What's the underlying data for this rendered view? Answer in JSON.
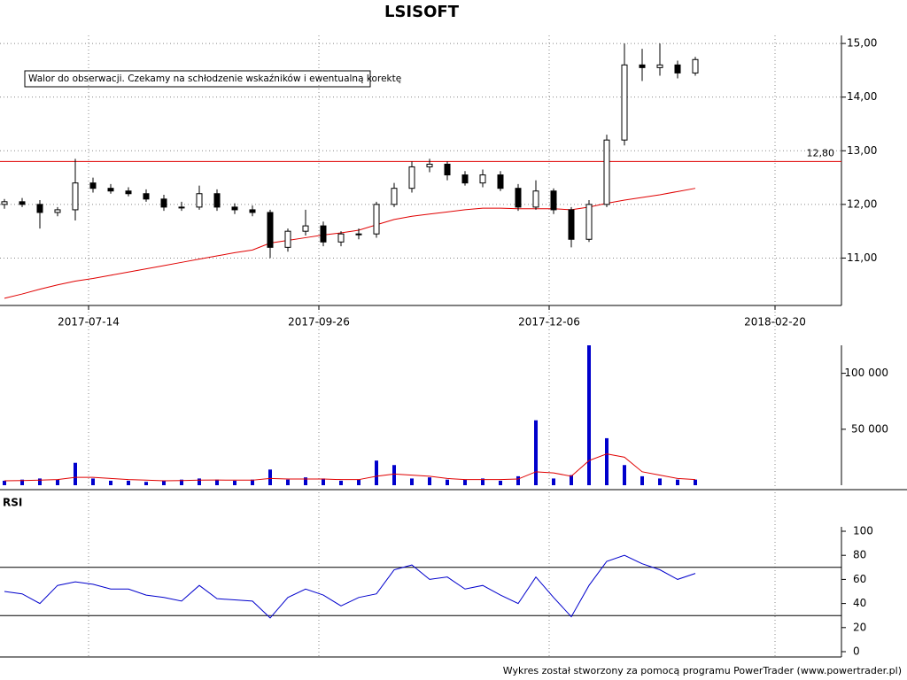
{
  "footer": "Wykres został stworzony za pomocą programu PowerTrader (www.powertrader.pl)",
  "chart_data": [
    {
      "type": "candlestick",
      "title": "LSISOFT",
      "annotation": "Walor do obserwacji. Czekamy na schłodzenie wskaźników i ewentualną korektę",
      "x": [
        0,
        4,
        8,
        12,
        16,
        20,
        24,
        28,
        32,
        36,
        40,
        44,
        48,
        52,
        56,
        60,
        64,
        68,
        72,
        76,
        80,
        84,
        88,
        92,
        96,
        100,
        104,
        108,
        112,
        116,
        120,
        124,
        128,
        132,
        136,
        140,
        144,
        148,
        152,
        156
      ],
      "open": [
        12.0,
        12.05,
        12.0,
        11.85,
        11.9,
        12.4,
        12.3,
        12.25,
        12.2,
        12.1,
        11.95,
        11.95,
        12.2,
        11.95,
        11.9,
        11.85,
        11.2,
        11.5,
        11.6,
        11.3,
        11.45,
        11.45,
        12.0,
        12.3,
        12.7,
        12.75,
        12.55,
        12.4,
        12.55,
        12.3,
        11.95,
        12.25,
        11.9,
        11.35,
        12.0,
        13.2,
        14.6,
        14.55,
        14.6,
        14.45
      ],
      "high": [
        12.1,
        12.12,
        12.08,
        11.95,
        12.85,
        12.5,
        12.38,
        12.32,
        12.28,
        12.18,
        12.05,
        12.35,
        12.28,
        12.02,
        11.98,
        11.9,
        11.55,
        11.9,
        11.68,
        11.5,
        11.55,
        12.05,
        12.4,
        12.8,
        12.85,
        12.8,
        12.62,
        12.65,
        12.62,
        12.38,
        12.45,
        12.3,
        11.95,
        12.08,
        13.3,
        15.0,
        14.9,
        15.0,
        14.68,
        14.75
      ],
      "low": [
        11.92,
        11.95,
        11.55,
        11.78,
        11.7,
        12.22,
        12.2,
        12.15,
        12.05,
        11.88,
        11.88,
        11.9,
        11.88,
        11.82,
        11.78,
        11.0,
        11.12,
        11.42,
        11.22,
        11.22,
        11.35,
        11.38,
        11.95,
        12.22,
        12.6,
        12.45,
        12.35,
        12.32,
        12.25,
        11.88,
        11.9,
        11.82,
        11.2,
        11.3,
        11.95,
        13.1,
        14.3,
        14.4,
        14.35,
        14.4
      ],
      "close": [
        12.05,
        12.0,
        11.85,
        11.9,
        12.4,
        12.3,
        12.25,
        12.2,
        12.1,
        11.95,
        11.95,
        12.2,
        11.95,
        11.9,
        11.85,
        11.2,
        11.5,
        11.6,
        11.3,
        11.45,
        11.45,
        12.0,
        12.3,
        12.7,
        12.75,
        12.55,
        12.4,
        12.55,
        12.3,
        11.95,
        12.25,
        11.9,
        11.35,
        12.0,
        13.2,
        14.6,
        14.55,
        14.6,
        14.45,
        14.7
      ],
      "ma": {
        "color": "#e00000",
        "values": [
          10.25,
          10.33,
          10.42,
          10.5,
          10.57,
          10.62,
          10.68,
          10.74,
          10.8,
          10.86,
          10.92,
          10.98,
          11.04,
          11.1,
          11.15,
          11.28,
          11.33,
          11.38,
          11.43,
          11.47,
          11.52,
          11.62,
          11.72,
          11.78,
          11.82,
          11.86,
          11.9,
          11.93,
          11.93,
          11.92,
          11.92,
          11.92,
          11.9,
          11.95,
          12.02,
          12.08,
          12.13,
          12.18,
          12.24,
          12.3
        ]
      },
      "hline": {
        "value": 12.8,
        "label": "12,80",
        "color": "#e00000"
      },
      "up_color": "#ffffff",
      "down_color": "#000000",
      "xlim": [
        -1,
        189
      ],
      "xticks": [
        {
          "value": 19,
          "label": "2017-07-14"
        },
        {
          "value": 71,
          "label": "2017-09-26"
        },
        {
          "value": 123,
          "label": "2017-12-06"
        },
        {
          "value": 174,
          "label": "2018-02-20"
        }
      ],
      "ylim": [
        10.1,
        15.15
      ],
      "yticks": [
        {
          "value": 11,
          "label": "11,00"
        },
        {
          "value": 12,
          "label": "12,00"
        },
        {
          "value": 13,
          "label": "13,00"
        },
        {
          "value": 14,
          "label": "14,00"
        },
        {
          "value": 15,
          "label": "15,00"
        }
      ],
      "grid": true
    },
    {
      "type": "bar",
      "color": "#0000cc",
      "x": [
        0,
        4,
        8,
        12,
        16,
        20,
        24,
        28,
        32,
        36,
        40,
        44,
        48,
        52,
        56,
        60,
        64,
        68,
        72,
        76,
        80,
        84,
        88,
        92,
        96,
        100,
        104,
        108,
        112,
        116,
        120,
        124,
        128,
        132,
        136,
        140,
        144,
        148,
        152,
        156
      ],
      "values": [
        4000,
        5000,
        6000,
        5000,
        20000,
        6000,
        4000,
        4000,
        3000,
        4000,
        5000,
        6000,
        5000,
        4000,
        5000,
        14000,
        5000,
        7000,
        6000,
        4000,
        5000,
        22000,
        18000,
        6000,
        7000,
        5000,
        5000,
        6000,
        4000,
        8000,
        58000,
        6000,
        9000,
        125000,
        42000,
        18000,
        8000,
        6000,
        5000,
        5000
      ],
      "ma": {
        "color": "#e00000",
        "values": [
          4000,
          4200,
          4500,
          5000,
          7000,
          7000,
          6000,
          5000,
          4500,
          4000,
          4200,
          4500,
          4600,
          4500,
          4500,
          6000,
          5500,
          5500,
          5500,
          5000,
          5000,
          8000,
          10000,
          9000,
          8000,
          6000,
          5000,
          5000,
          5000,
          5500,
          12000,
          11000,
          8000,
          22000,
          28000,
          25000,
          12000,
          9000,
          6000,
          5000
        ]
      },
      "xlim": [
        -1,
        189
      ],
      "ylim": [
        0,
        125000
      ],
      "yticks": [
        {
          "value": 50000,
          "label": "50 000"
        },
        {
          "value": 100000,
          "label": "100 000"
        }
      ]
    },
    {
      "type": "line",
      "title": "RSI",
      "color": "#0000cc",
      "x": [
        0,
        4,
        8,
        12,
        16,
        20,
        24,
        28,
        32,
        36,
        40,
        44,
        48,
        52,
        56,
        60,
        64,
        68,
        72,
        76,
        80,
        84,
        88,
        92,
        96,
        100,
        104,
        108,
        112,
        116,
        120,
        124,
        128,
        132,
        136,
        140,
        144,
        148,
        152,
        156
      ],
      "values": [
        50,
        48,
        40,
        55,
        58,
        56,
        52,
        52,
        47,
        45,
        42,
        55,
        44,
        43,
        42,
        28,
        45,
        52,
        47,
        38,
        45,
        48,
        68,
        72,
        60,
        62,
        52,
        55,
        47,
        40,
        62,
        45,
        29,
        55,
        75,
        80,
        73,
        68,
        60,
        65
      ],
      "levels": [
        30,
        70
      ],
      "xlim": [
        -1,
        189
      ],
      "ylim": [
        0,
        100
      ],
      "yticks": [
        0,
        20,
        40,
        60,
        80,
        100
      ]
    }
  ]
}
